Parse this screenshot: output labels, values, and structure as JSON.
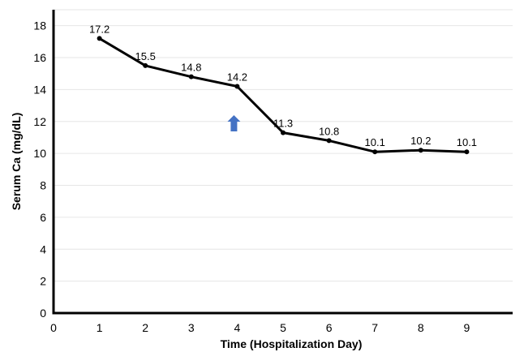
{
  "chart_data": {
    "type": "line",
    "x": [
      1,
      2,
      3,
      4,
      5,
      6,
      7,
      8,
      9
    ],
    "series": [
      {
        "values": [
          17.2,
          15.5,
          14.8,
          14.2,
          11.3,
          10.8,
          10.1,
          10.2,
          10.1
        ]
      }
    ],
    "data_labels": [
      "17.2",
      "15.5",
      "14.8",
      "14.2",
      "11.3",
      "10.8",
      "10.1",
      "10.2",
      "10.1"
    ],
    "xlabel": "Time (Hospitalization Day)",
    "ylabel": "Serum Ca (mg/dL)",
    "xlim": [
      0,
      10
    ],
    "ylim": [
      0,
      19
    ],
    "xticks": [
      "0",
      "1",
      "2",
      "3",
      "4",
      "5",
      "6",
      "7",
      "8",
      "9"
    ],
    "yticks": [
      "0",
      "2",
      "4",
      "6",
      "8",
      "10",
      "12",
      "14",
      "16",
      "18"
    ],
    "grid": true,
    "annotation": {
      "type": "arrow",
      "x": 4,
      "color": "#4472c4",
      "direction": "up"
    },
    "colors": {
      "line": "#000000",
      "grid": "#e6e6e6",
      "arrow": "#4472c4"
    }
  }
}
